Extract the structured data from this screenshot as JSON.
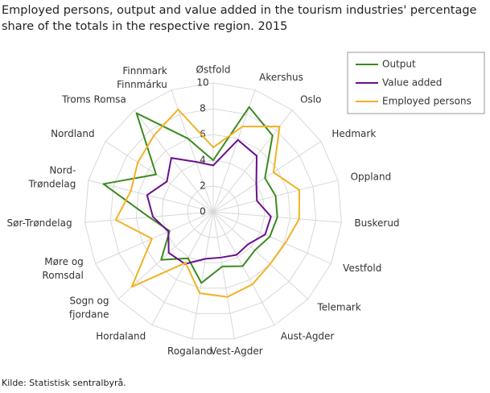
{
  "chart_data": {
    "type": "radar",
    "title": [
      "Employed persons, output and value added in the tourism industries' percentage",
      "share of the totals in the respective region. 2015"
    ],
    "source": "Kilde: Statistisk sentralbyrå.",
    "categories": [
      "Østfold",
      "Akershus",
      "Oslo",
      "Hedmark",
      "Oppland",
      "Buskerud",
      "Vestfold",
      "Telemark",
      "Aust-Agder",
      "Vest-Agder",
      "Rogaland",
      "Hordaland",
      "Sogn og\nfjordane",
      "Møre og\nRomsdal",
      "Sør-Trøndelag",
      "Nord-\nTrøndelag",
      "Nordland",
      "Troms Romsa",
      "Finnmark\nFinnmárku"
    ],
    "ylim": [
      0,
      10
    ],
    "yticks": [
      0,
      2,
      4,
      6,
      8,
      10
    ],
    "grid": true,
    "legend": "top-right",
    "series": [
      {
        "name": "Output",
        "color": "#3a8a1e",
        "values": [
          4.0,
          8.6,
          7.5,
          4.8,
          5.0,
          5.0,
          4.8,
          4.4,
          4.8,
          4.3,
          5.6,
          4.1,
          5.5,
          3.7,
          5.0,
          8.8,
          5.3,
          9.7,
          6.0
        ]
      },
      {
        "name": "Value added",
        "color": "#6a0f8e",
        "values": [
          3.6,
          5.9,
          5.5,
          4.0,
          3.5,
          4.5,
          4.4,
          3.7,
          3.8,
          3.6,
          3.7,
          4.6,
          4.7,
          3.8,
          4.7,
          5.3,
          4.3,
          5.3,
          4.1
        ]
      },
      {
        "name": "Employed persons",
        "color": "#f0b323",
        "values": [
          5.0,
          7.0,
          8.4,
          5.6,
          6.9,
          6.7,
          6.1,
          6.0,
          6.4,
          6.7,
          6.4,
          4.5,
          8.6,
          5.2,
          7.6,
          6.6,
          7.0,
          7.5,
          8.4
        ]
      }
    ]
  }
}
